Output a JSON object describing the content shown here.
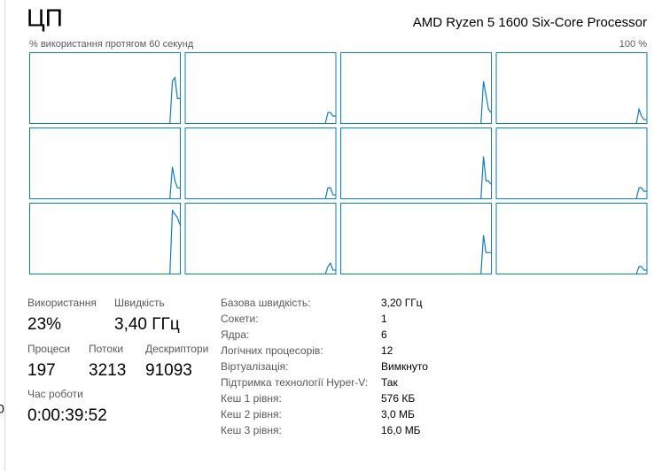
{
  "header": {
    "title": "ЦП",
    "processor": "AMD Ryzen 5 1600 Six-Core Processor",
    "axis_label": "% використання протягом 60 секунд",
    "max_label": "100 %"
  },
  "chart_data": [
    {
      "type": "line",
      "color": "#117dbb",
      "xlim": [
        0,
        60
      ],
      "ylim": [
        0,
        100
      ],
      "x": [
        56,
        57,
        58,
        59,
        60
      ],
      "values": [
        0,
        60,
        65,
        35,
        35
      ]
    },
    {
      "type": "line",
      "color": "#117dbb",
      "xlim": [
        0,
        60
      ],
      "ylim": [
        0,
        100
      ],
      "x": [
        56,
        57,
        58,
        59,
        60
      ],
      "values": [
        0,
        15,
        15,
        10,
        10
      ]
    },
    {
      "type": "line",
      "color": "#117dbb",
      "xlim": [
        0,
        60
      ],
      "ylim": [
        0,
        100
      ],
      "x": [
        56,
        57,
        58,
        59,
        60
      ],
      "values": [
        0,
        60,
        40,
        20,
        15
      ]
    },
    {
      "type": "line",
      "color": "#117dbb",
      "xlim": [
        0,
        60
      ],
      "ylim": [
        0,
        100
      ],
      "x": [
        56,
        57,
        58,
        59,
        60
      ],
      "values": [
        0,
        20,
        10,
        5,
        5
      ]
    },
    {
      "type": "line",
      "color": "#117dbb",
      "xlim": [
        0,
        60
      ],
      "ylim": [
        0,
        100
      ],
      "x": [
        56,
        57,
        58,
        59,
        60
      ],
      "values": [
        0,
        45,
        25,
        15,
        15
      ]
    },
    {
      "type": "line",
      "color": "#117dbb",
      "xlim": [
        0,
        60
      ],
      "ylim": [
        0,
        100
      ],
      "x": [
        56,
        57,
        58,
        59,
        60
      ],
      "values": [
        0,
        15,
        15,
        5,
        5
      ]
    },
    {
      "type": "line",
      "color": "#117dbb",
      "xlim": [
        0,
        60
      ],
      "ylim": [
        0,
        100
      ],
      "x": [
        56,
        57,
        58,
        59,
        60
      ],
      "values": [
        0,
        60,
        25,
        25,
        20
      ]
    },
    {
      "type": "line",
      "color": "#117dbb",
      "xlim": [
        0,
        60
      ],
      "ylim": [
        0,
        100
      ],
      "x": [
        56,
        57,
        58,
        59,
        60
      ],
      "values": [
        0,
        15,
        15,
        10,
        10
      ]
    },
    {
      "type": "line",
      "color": "#117dbb",
      "xlim": [
        0,
        60
      ],
      "ylim": [
        0,
        100
      ],
      "x": [
        56,
        57,
        58,
        59,
        60
      ],
      "values": [
        0,
        90,
        85,
        80,
        70
      ]
    },
    {
      "type": "line",
      "color": "#117dbb",
      "xlim": [
        0,
        60
      ],
      "ylim": [
        0,
        100
      ],
      "x": [
        56,
        57,
        58,
        59,
        60
      ],
      "values": [
        0,
        10,
        15,
        5,
        5
      ]
    },
    {
      "type": "line",
      "color": "#117dbb",
      "xlim": [
        0,
        60
      ],
      "ylim": [
        0,
        100
      ],
      "x": [
        56,
        57,
        58,
        59,
        60
      ],
      "values": [
        0,
        55,
        30,
        30,
        30
      ]
    },
    {
      "type": "line",
      "color": "#117dbb",
      "xlim": [
        0,
        60
      ],
      "ylim": [
        0,
        100
      ],
      "x": [
        56,
        57,
        58,
        59,
        60
      ],
      "values": [
        0,
        10,
        10,
        5,
        5
      ]
    }
  ],
  "stats": [
    {
      "label": "Використання",
      "value": "23%"
    },
    {
      "label": "Швидкість",
      "value": "3,40 ГГц"
    },
    {
      "label": "Процеси",
      "value": "197"
    },
    {
      "label": "Потоки",
      "value": "3213"
    },
    {
      "label": "Дескриптори",
      "value": "91093"
    },
    {
      "label": "Час роботи",
      "value": "0:00:39:52"
    }
  ],
  "details": [
    {
      "label": "Базова швидкість:",
      "value": "3,20 ГГц"
    },
    {
      "label": "Сокети:",
      "value": "1"
    },
    {
      "label": "Ядра:",
      "value": "6"
    },
    {
      "label": "Логічних процесорів:",
      "value": "12"
    },
    {
      "label": "Віртуалізація:",
      "value": "Вимкнуто"
    },
    {
      "label": "Підтримка технології Hyper-V:",
      "value": "Так"
    },
    {
      "label": "Кеш 1 рівня:",
      "value": "576 КБ"
    },
    {
      "label": "Кеш 2 рівня:",
      "value": "3,0 МБ"
    },
    {
      "label": "Кеш 3 рівня:",
      "value": "16,0 МБ"
    }
  ],
  "sidebar_text": "0"
}
